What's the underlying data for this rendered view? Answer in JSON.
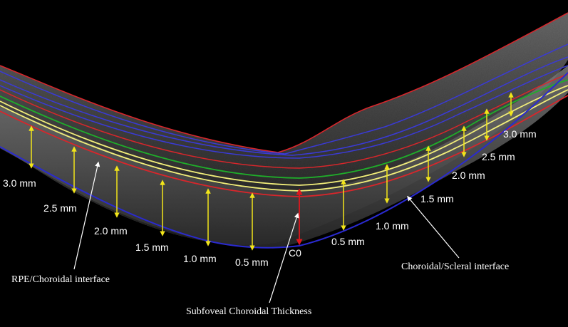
{
  "figure": {
    "colors": {
      "background": "#000000",
      "retina_red": "#d8262b",
      "retina_blue": "#3a3ad6",
      "rpe_green": "#1fae2a",
      "rpe_yellow": "#f2ee7a",
      "measure_arrow": "#f2e51a",
      "subfoveal_arrow": "#e0161d",
      "label": "#ffffff"
    },
    "left_measurements": [
      {
        "label": "3.0 mm"
      },
      {
        "label": "2.5 mm"
      },
      {
        "label": "2.0 mm"
      },
      {
        "label": "1.5 mm"
      },
      {
        "label": "1.0 mm"
      },
      {
        "label": "0.5 mm"
      }
    ],
    "center_measurement": {
      "label": "C0"
    },
    "right_measurements": [
      {
        "label": "0.5 mm"
      },
      {
        "label": "1.0 mm"
      },
      {
        "label": "1.5 mm"
      },
      {
        "label": "2.0 mm"
      },
      {
        "label": "2.5 mm"
      },
      {
        "label": "3.0 mm"
      }
    ],
    "annotations": {
      "rpe_interface": "RPE/Choroidal interface",
      "subfoveal": "Subfoveal Choroidal Thickness",
      "scleral_interface": "Choroidal/Scleral interface"
    }
  }
}
